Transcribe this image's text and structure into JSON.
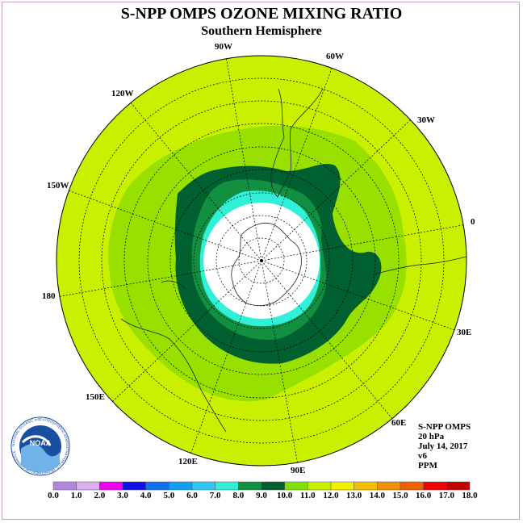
{
  "title": "S-NPP OMPS OZONE MIXING RATIO",
  "subtitle": "Southern Hemisphere",
  "longitude_labels": [
    "90W",
    "60W",
    "30W",
    "0",
    "30E",
    "60E",
    "90E",
    "120E",
    "150E",
    "180",
    "150W",
    "120W"
  ],
  "info": {
    "instrument": "S-NPP OMPS",
    "level": "20 hPa",
    "date": "July 14, 2017",
    "version": "v6",
    "units": "PPM"
  },
  "logo": {
    "text": "NOAA",
    "ring_text": "NATIONAL OCEANIC AND ATMOSPHERIC ADMINISTRATION U.S. DEPARTMENT OF COMMERCE"
  },
  "colorbar": {
    "ticks": [
      "0.0",
      "1.0",
      "2.0",
      "3.0",
      "4.0",
      "5.0",
      "6.0",
      "7.0",
      "8.0",
      "9.0",
      "10.0",
      "11.0",
      "12.0",
      "13.0",
      "14.0",
      "15.0",
      "16.0",
      "17.0",
      "18.0"
    ],
    "colors": [
      "#b088e0",
      "#d8b0f0",
      "#f000f0",
      "#1010e8",
      "#1070f0",
      "#10a0f0",
      "#30c8f0",
      "#30f0d8",
      "#109040",
      "#006030",
      "#80e000",
      "#c8f000",
      "#f0f000",
      "#f0c000",
      "#f09000",
      "#f06000",
      "#f00000",
      "#c00000",
      "#806040"
    ]
  }
}
